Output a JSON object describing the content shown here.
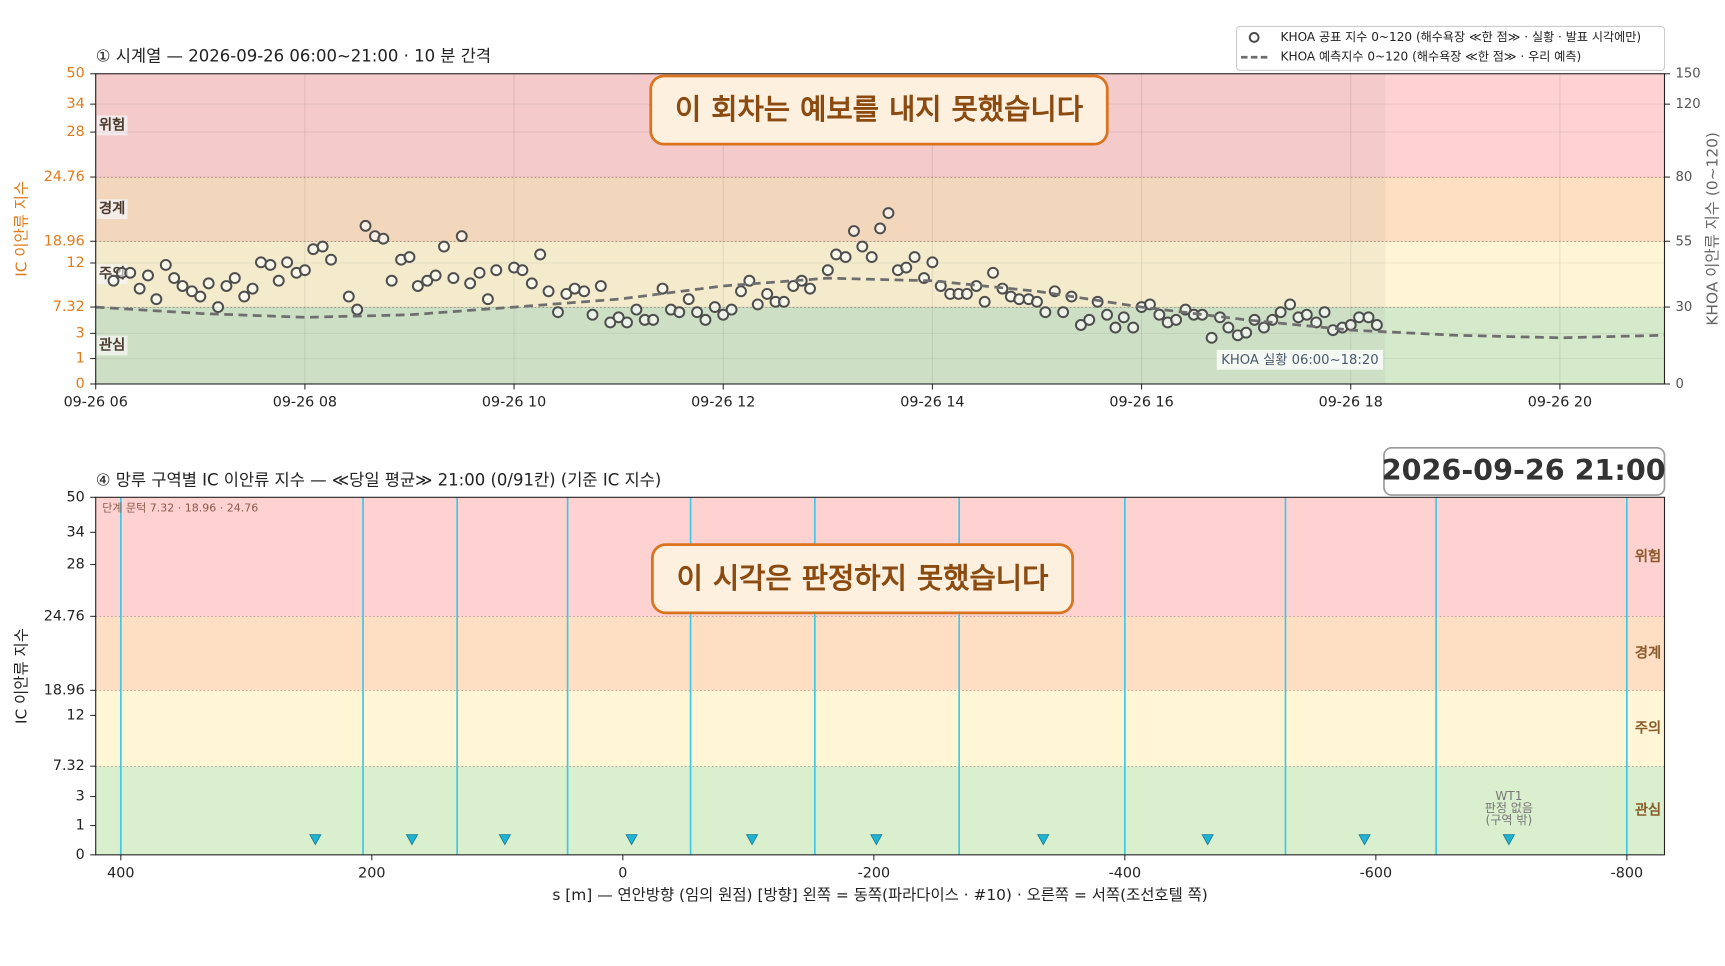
{
  "chart_data": [
    {
      "type": "scatter",
      "title": "① 시계열 — 2026-09-26 06:00~21:00 · 10 분 간격",
      "ylabel": "IC 이안류 지수",
      "y2label": "KHOA 이안류 지수 (0~120)",
      "xlim": [
        6,
        21
      ],
      "xticks": [
        {
          "value": 6,
          "label": "09-26 06"
        },
        {
          "value": 8,
          "label": "09-26 08"
        },
        {
          "value": 10,
          "label": "09-26 10"
        },
        {
          "value": 12,
          "label": "09-26 12"
        },
        {
          "value": 14,
          "label": "09-26 14"
        },
        {
          "value": 16,
          "label": "09-26 16"
        },
        {
          "value": 18,
          "label": "09-26 18"
        },
        {
          "value": 20,
          "label": "09-26 20"
        }
      ],
      "ylim": [
        0,
        50
      ],
      "yticks": [
        0,
        1,
        3,
        7.32,
        12,
        18.96,
        24.76,
        28,
        34,
        50
      ],
      "y2lim": [
        0,
        150
      ],
      "y2ticks": [
        0,
        30,
        55,
        80,
        120,
        150
      ],
      "grid": true,
      "legend": "upper right",
      "band_label_side": "left",
      "bands": [
        {
          "label": "관심",
          "from": 0,
          "to": 7.32,
          "color": "#d5e9cb"
        },
        {
          "label": "주의",
          "from": 7.32,
          "to": 18.96,
          "color": "#fdf5d3"
        },
        {
          "label": "경계",
          "from": 18.96,
          "to": 24.76,
          "color": "#fde0c2"
        },
        {
          "label": "위험",
          "from": 24.76,
          "to": 50,
          "color": "#fed2d2"
        }
      ],
      "observed_range": {
        "label": "KHOA 실황 06:00~18:20",
        "from": 6,
        "to": 18.33
      },
      "message": "이 회차는 예보를 내지 못했습니다",
      "series": [
        {
          "name": "KHOA 공표 지수 0~120 (해수욕장 ≪한 점≫ · 실황 · 발표 시각에만)",
          "color": "#4d4d4d",
          "axis": "y2",
          "style": "markers",
          "x": [
            6.17,
            6.25,
            6.33,
            6.42,
            6.5,
            6.58,
            6.67,
            6.75,
            6.83,
            6.92,
            7,
            7.08,
            7.17,
            7.25,
            7.33,
            7.42,
            7.5,
            7.58,
            7.67,
            7.75,
            7.83,
            7.92,
            8,
            8.08,
            8.17,
            8.25,
            8.33,
            8.42,
            8.5,
            8.58,
            8.67,
            8.75,
            8.83,
            8.92,
            9,
            9.08,
            9.17,
            9.25,
            9.33,
            9.42,
            9.5,
            9.58,
            9.67,
            9.75,
            9.83,
            9.92,
            10,
            10.08,
            10.17,
            10.25,
            10.33,
            10.42,
            10.5,
            10.58,
            10.67,
            10.75,
            10.83,
            10.92,
            11,
            11.08,
            11.17,
            11.25,
            11.33,
            11.42,
            11.5,
            11.58,
            11.67,
            11.75,
            11.83,
            11.92,
            12,
            12.08,
            12.17,
            12.25,
            12.33,
            12.42,
            12.5,
            12.58,
            12.67,
            12.75,
            12.83,
            12.92,
            13,
            13.08,
            13.17,
            13.25,
            13.33,
            13.42,
            13.5,
            13.58,
            13.67,
            13.75,
            13.83,
            13.92,
            14,
            14.08,
            14.17,
            14.25,
            14.33,
            14.42,
            14.5,
            14.58,
            14.67,
            14.75,
            14.83,
            14.92,
            15,
            15.08,
            15.17,
            15.25,
            15.33,
            15.42,
            15.5,
            15.58,
            15.67,
            15.75,
            15.83,
            15.92,
            16,
            16.08,
            16.17,
            16.25,
            16.33,
            16.42,
            16.5,
            16.58,
            16.67,
            16.75,
            16.83,
            16.92,
            17,
            17.08,
            17.17,
            17.25,
            17.33,
            17.42,
            17.5,
            17.58,
            17.67,
            17.75,
            17.83,
            17.92,
            18,
            18.08,
            18.17,
            18.25
          ],
          "values": [
            40,
            43,
            43,
            37,
            42,
            33,
            46,
            41,
            38,
            36,
            34,
            39,
            30,
            38,
            41,
            34,
            37,
            47,
            46,
            40,
            47,
            43,
            44,
            52,
            53,
            48,
            null,
            34,
            29,
            61,
            57,
            56,
            40,
            48,
            49,
            38,
            40,
            42,
            53,
            41,
            57,
            39,
            43,
            33,
            44,
            null,
            45,
            44,
            39,
            50,
            36,
            28,
            35,
            37,
            36,
            27,
            38,
            24,
            26,
            24,
            29,
            25,
            25,
            37,
            29,
            28,
            33,
            28,
            25,
            30,
            27,
            29,
            36,
            40,
            31,
            35,
            32,
            32,
            38,
            40,
            37,
            null,
            44,
            50,
            49,
            59,
            53,
            49,
            60,
            66,
            44,
            45,
            49,
            41,
            47,
            38,
            35,
            35,
            35,
            38,
            32,
            43,
            37,
            34,
            33,
            33,
            32,
            28,
            36,
            28,
            34,
            23,
            25,
            32,
            27,
            22,
            26,
            22,
            30,
            31,
            27,
            24,
            25,
            29,
            27,
            27,
            18,
            26,
            22,
            19,
            20,
            25,
            22,
            25,
            28,
            31,
            26,
            27,
            24,
            28,
            21,
            22,
            23,
            26,
            26,
            23
          ]
        },
        {
          "name": "KHOA 예측지수 0~120 (해수욕장 ≪한 점≫ · 우리 예측)",
          "color": "#6e6e6e",
          "axis": "y2",
          "style": "dashed",
          "x": [
            6,
            7,
            8,
            9,
            10,
            11,
            12,
            13,
            14,
            15,
            16,
            17,
            18,
            19,
            20,
            21
          ],
          "values": [
            30,
            27.5,
            26,
            27,
            30,
            33,
            38,
            41,
            40,
            36,
            30,
            25,
            21,
            19,
            18,
            19
          ]
        }
      ]
    },
    {
      "type": "zones",
      "title": "④ 망루 구역별 IC 이안류 지수 — ≪당일 평균≫ 21:00  (0/91칸)   (기준 IC 지수)",
      "timestamp": "2026-09-26  21:00",
      "message": "이 시각은 판정하지 못했습니다",
      "threshold_note": "단계 문턱 7.32 · 18.96 · 24.76",
      "xlabel": "s [m] — 연안방향 (임의 원점)     [방향] 왼쪽 = 동쪽(파라다이스 · #10) · 오른쪽 = 서쪽(조선호텔 쪽)",
      "ylabel": "IC 이안류 지수",
      "xlim": [
        420,
        -830
      ],
      "xticks": [
        400,
        200,
        0,
        -200,
        -400,
        -600,
        -800
      ],
      "ylim": [
        0,
        50
      ],
      "yticks": [
        0,
        1,
        3,
        7.32,
        12,
        18.96,
        24.76,
        28,
        34,
        50
      ],
      "band_label_side": "right",
      "bands": [
        {
          "label": "관심",
          "from": 0,
          "to": 7.32,
          "color": "#d9efcd"
        },
        {
          "label": "주의",
          "from": 7.32,
          "to": 18.96,
          "color": "#fff6d6"
        },
        {
          "label": "경계",
          "from": 18.96,
          "to": 24.76,
          "color": "#ffdfc4"
        },
        {
          "label": "위험",
          "from": 24.76,
          "to": 50,
          "color": "#ffd2d2"
        }
      ],
      "boundaries": {
        "color": "#3cc8e6",
        "values": [
          400,
          207,
          132,
          44,
          -54,
          -153,
          -268,
          -400,
          -528,
          -648,
          -800
        ]
      },
      "markers": {
        "color": "#1fb4d4",
        "x": [
          245,
          168,
          94,
          -7,
          -103,
          -202,
          -335,
          -466,
          -591,
          -706
        ],
        "values": [
          0.5,
          0.5,
          0.5,
          0.5,
          0.5,
          0.5,
          0.5,
          0.5,
          0.5,
          0.5
        ]
      },
      "zone_note": [
        "WT1",
        "판정 없음",
        "(구역 밖)"
      ]
    }
  ]
}
